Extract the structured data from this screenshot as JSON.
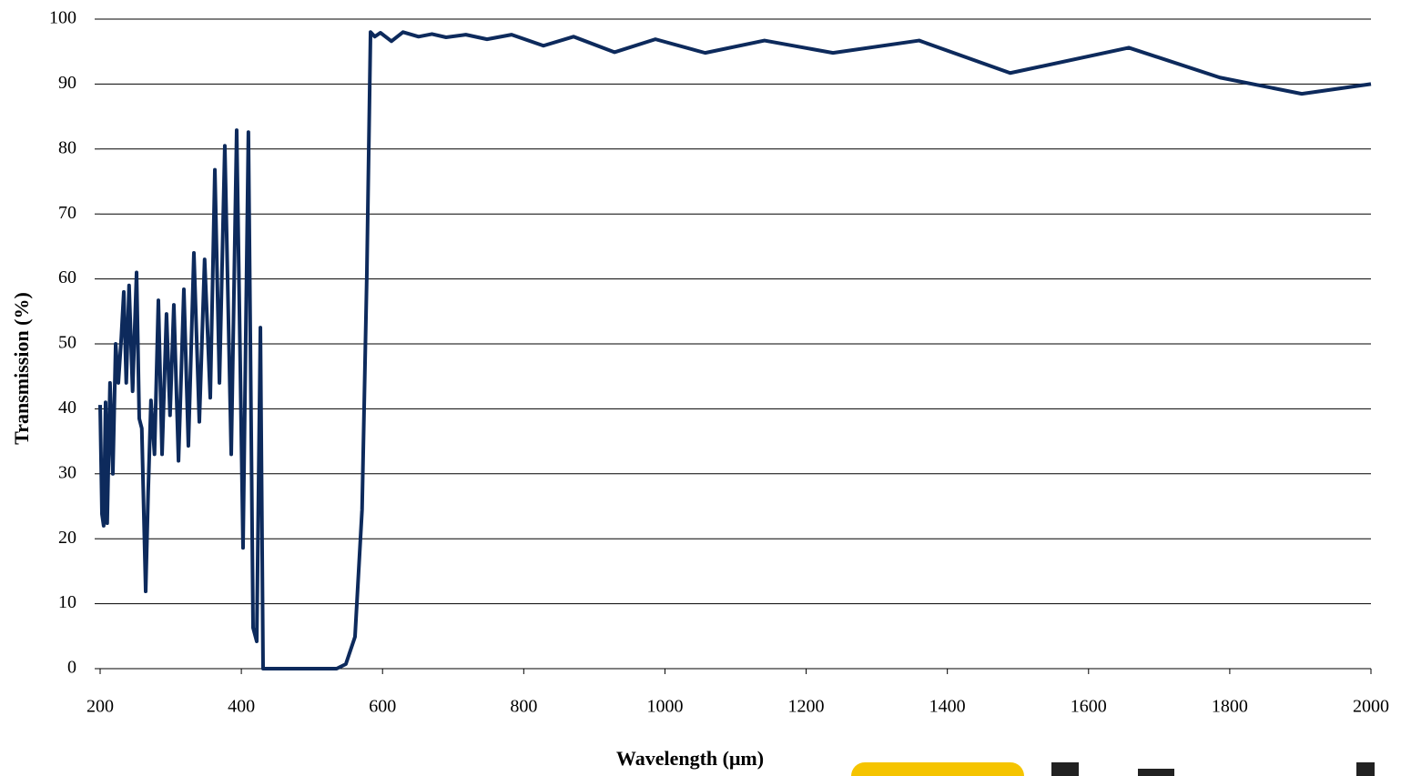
{
  "chart_data": {
    "type": "line",
    "xlabel": "Wavelength (μm)",
    "ylabel": "Transmission (%)",
    "x": [
      200,
      202.6,
      205,
      207.7,
      210,
      214,
      218,
      222,
      225.8,
      230,
      233.5,
      237,
      241,
      246,
      251.6,
      255.4,
      259,
      264.5,
      268,
      272,
      277,
      282.5,
      287.7,
      294,
      299,
      304.4,
      311,
      318.6,
      325,
      332.8,
      340.5,
      348,
      356,
      362.5,
      369,
      376.6,
      385.7,
      393.4,
      402.4,
      410,
      416.6,
      421.8,
      427,
      430.8,
      457.9,
      535,
      548,
      561,
      571,
      577.8,
      583,
      589,
      597,
      612.6,
      629,
      651,
      670,
      690,
      718,
      748,
      782.8,
      827.9,
      870.5,
      928.5,
      986.5,
      1057,
      1141,
      1238,
      1360,
      1489,
      1657,
      1786,
      1902,
      2000
    ],
    "values": [
      40.6,
      23.8,
      22,
      41,
      22.4,
      44,
      30,
      50,
      44,
      51,
      58,
      44,
      59,
      42.7,
      61,
      38.5,
      37,
      11.9,
      27,
      41.3,
      33,
      56.7,
      33,
      54.6,
      39,
      56,
      32,
      58.4,
      34.3,
      64,
      38,
      63,
      41.7,
      76.8,
      44,
      80.5,
      33,
      82.9,
      18.6,
      82.6,
      6.3,
      4.2,
      52.5,
      0,
      0,
      0,
      0.7,
      4.9,
      24.5,
      60.9,
      98,
      97.3,
      97.9,
      96.6,
      98,
      97.3,
      97.7,
      97.2,
      97.6,
      96.9,
      97.6,
      95.9,
      97.3,
      94.9,
      96.9,
      94.8,
      96.7,
      94.8,
      96.7,
      91.7,
      95.6,
      91,
      88.5,
      90
    ],
    "color": "#0d2a5c",
    "xlim": [
      200,
      2000
    ],
    "xticks": [
      200,
      400,
      600,
      800,
      1000,
      1200,
      1400,
      1600,
      1800,
      2000
    ],
    "ylim": [
      0,
      100
    ],
    "yticks": [
      0,
      10,
      20,
      30,
      40,
      50,
      60,
      70,
      80,
      90,
      100
    ],
    "grid": true
  }
}
